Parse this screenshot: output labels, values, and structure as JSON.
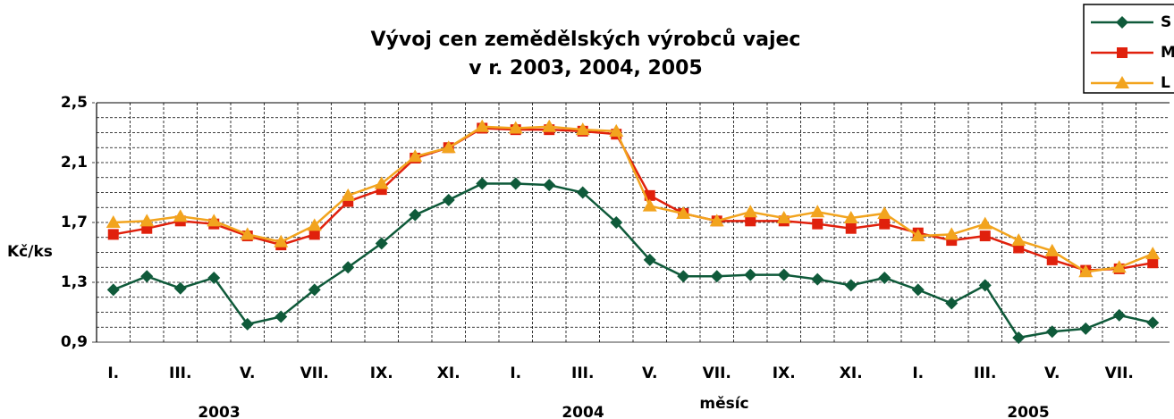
{
  "chart_data": {
    "type": "line",
    "title": [
      "Vývoj cen zemědělských výrobců vajec",
      "v r. 2003, 2004, 2005"
    ],
    "y_label": "Kč/ks",
    "x_label": "měsíc",
    "groups": [
      "2003",
      "2004",
      "2005"
    ],
    "categories": [
      "I.",
      null,
      "III.",
      null,
      "V.",
      null,
      "VII.",
      null,
      "IX.",
      null,
      "XI.",
      null,
      "I.",
      null,
      "III.",
      null,
      "V.",
      null,
      "VII.",
      null,
      "IX.",
      null,
      "XI.",
      null,
      "I.",
      null,
      "III.",
      null,
      "V.",
      null,
      "VII.",
      null
    ],
    "series": [
      {
        "name": "S",
        "color": "#0f5a3a",
        "marker": "diamond",
        "values": [
          1.25,
          1.34,
          1.26,
          1.33,
          1.02,
          1.07,
          1.25,
          1.4,
          1.56,
          1.75,
          1.85,
          1.96,
          1.96,
          1.95,
          1.9,
          1.7,
          1.45,
          1.34,
          1.34,
          1.35,
          1.35,
          1.32,
          1.28,
          1.33,
          1.25,
          1.16,
          1.28,
          0.93,
          0.97,
          0.99,
          1.08,
          1.03
        ]
      },
      {
        "name": "M",
        "color": "#e0200c",
        "marker": "square",
        "values": [
          1.62,
          1.66,
          1.71,
          1.69,
          1.61,
          1.55,
          1.62,
          1.84,
          1.92,
          2.13,
          2.2,
          2.33,
          2.32,
          2.32,
          2.31,
          2.29,
          1.88,
          1.76,
          1.71,
          1.71,
          1.71,
          1.69,
          1.66,
          1.69,
          1.63,
          1.58,
          1.61,
          1.53,
          1.45,
          1.38,
          1.39,
          1.43
        ]
      },
      {
        "name": "L",
        "color": "#f2a41e",
        "marker": "triangle",
        "values": [
          1.7,
          1.71,
          1.74,
          1.71,
          1.62,
          1.57,
          1.68,
          1.88,
          1.96,
          2.14,
          2.2,
          2.34,
          2.33,
          2.34,
          2.32,
          2.31,
          1.81,
          1.76,
          1.71,
          1.77,
          1.73,
          1.77,
          1.73,
          1.76,
          1.61,
          1.62,
          1.69,
          1.58,
          1.51,
          1.37,
          1.4,
          1.49
        ]
      }
    ],
    "ylim": [
      0.9,
      2.5
    ],
    "yticks": [
      {
        "value": 0.9,
        "label": "0,9"
      },
      {
        "value": 1.3,
        "label": "1,3"
      },
      {
        "value": 1.7,
        "label": "1,7"
      },
      {
        "value": 2.1,
        "label": "2,1"
      },
      {
        "value": 2.5,
        "label": "2,5"
      }
    ],
    "minor_grid": [
      1.0,
      1.1,
      1.2,
      1.4,
      1.5,
      1.6,
      1.8,
      1.9,
      2.0,
      2.2,
      2.3,
      2.4
    ],
    "grid": true,
    "legend": "top-right"
  }
}
